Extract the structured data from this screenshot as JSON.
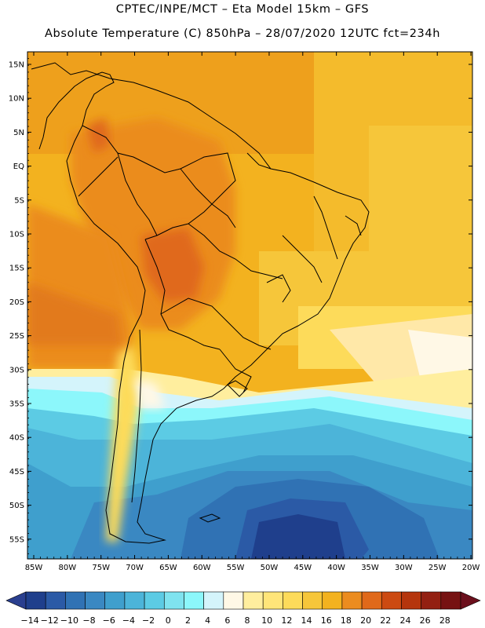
{
  "title": {
    "line1": "CPTEC/INPE/MCT –  Eta Model 15km – GFS",
    "line2": "Absolute Temperature (C) 850hPa – 28/07/2020 12UTC fct=234h"
  },
  "axes": {
    "lat_labels": [
      "15N",
      "10N",
      "5N",
      "EQ",
      "5S",
      "10S",
      "15S",
      "20S",
      "25S",
      "30S",
      "35S",
      "40S",
      "45S",
      "50S",
      "55S"
    ],
    "lon_labels": [
      "85W",
      "80W",
      "75W",
      "70W",
      "65W",
      "60W",
      "55W",
      "50W",
      "45W",
      "40W",
      "35W",
      "30W",
      "25W",
      "20W"
    ]
  },
  "colorbar": {
    "labels": [
      "-14",
      "-12",
      "-10",
      "-8",
      "-6",
      "-4",
      "-2",
      "0",
      "2",
      "4",
      "6",
      "8",
      "10",
      "12",
      "14",
      "16",
      "18",
      "20",
      "22",
      "24",
      "26",
      "28"
    ],
    "colors": [
      "#1f3f8c",
      "#2b5aa6",
      "#3072b4",
      "#3a88c2",
      "#3f9fcd",
      "#4cb4d9",
      "#5ccbe4",
      "#7fe3ef",
      "#8cf7fb",
      "#d4f4fb",
      "#fff8e6",
      "#ffee9e",
      "#ffe579",
      "#fddb5a",
      "#f6c63a",
      "#f3b21f",
      "#eb8c1f",
      "#e0691a",
      "#cc4a12",
      "#b5350d",
      "#932012",
      "#761212"
    ],
    "under_color": "#2a3f8f",
    "over_color": "#6b0f1c"
  }
}
